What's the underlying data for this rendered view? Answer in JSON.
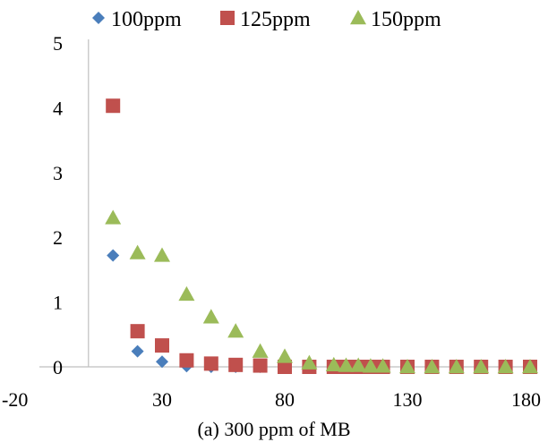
{
  "chart_data": {
    "type": "scatter",
    "caption": "(a) 300 ppm of MB",
    "xlim": [
      -20,
      180
    ],
    "ylim": [
      0,
      5
    ],
    "x_ticks": [
      -20,
      30,
      80,
      130,
      180
    ],
    "y_ticks": [
      0,
      1,
      2,
      3,
      4,
      5
    ],
    "legend_position": "top",
    "grid": false,
    "series": [
      {
        "name": "100ppm",
        "marker": "diamond",
        "color": "#4a7ebb",
        "x": [
          10,
          20,
          30,
          40,
          50,
          60,
          70,
          80,
          90,
          100,
          105,
          110,
          115,
          120,
          130,
          140,
          150,
          160,
          170,
          180
        ],
        "y": [
          1.72,
          0.24,
          0.08,
          0.01,
          0.0,
          0.0,
          0.0,
          0.0,
          0.0,
          0.0,
          0.0,
          0.0,
          0.0,
          0.0,
          0.0,
          0.0,
          0.0,
          0.0,
          0.0,
          0.0
        ]
      },
      {
        "name": "125ppm",
        "marker": "square",
        "color": "#c0504d",
        "x": [
          10,
          20,
          30,
          40,
          50,
          60,
          70,
          80,
          90,
          100,
          105,
          110,
          115,
          120,
          130,
          140,
          150,
          160,
          170,
          180
        ],
        "y": [
          4.03,
          0.55,
          0.33,
          0.1,
          0.05,
          0.03,
          0.02,
          0.0,
          0.0,
          0.0,
          0.0,
          0.0,
          0.0,
          0.0,
          0.0,
          0.0,
          0.0,
          0.0,
          0.0,
          0.0
        ]
      },
      {
        "name": "150ppm",
        "marker": "triangle",
        "color": "#9bbb59",
        "x": [
          10,
          20,
          30,
          40,
          50,
          60,
          70,
          80,
          90,
          100,
          105,
          110,
          115,
          120,
          130,
          140,
          150,
          160,
          170,
          180
        ],
        "y": [
          2.3,
          1.76,
          1.72,
          1.12,
          0.77,
          0.55,
          0.24,
          0.16,
          0.06,
          0.03,
          0.02,
          0.02,
          0.01,
          0.01,
          0.0,
          0.0,
          0.0,
          0.0,
          0.0,
          0.0
        ]
      }
    ]
  }
}
